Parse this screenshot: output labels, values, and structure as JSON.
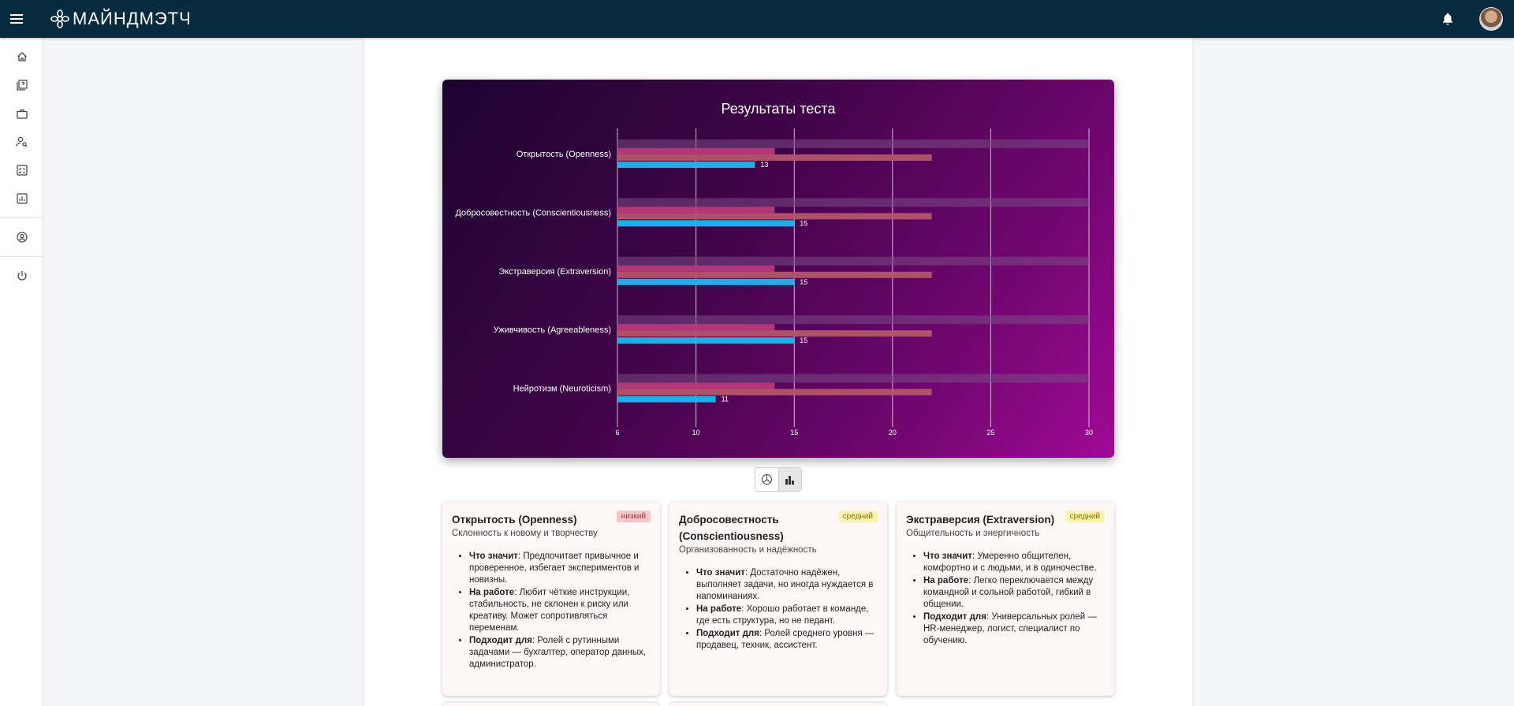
{
  "app": {
    "logo_text": "МАЙНДМЭТЧ"
  },
  "header": {
    "icons": [
      "menu-icon",
      "bell-icon",
      "avatar"
    ]
  },
  "sidebar": {
    "items": [
      {
        "icon": "home-icon"
      },
      {
        "icon": "tests-icon"
      },
      {
        "icon": "briefcase-icon"
      },
      {
        "icon": "user-search-icon"
      },
      {
        "icon": "checklist-icon"
      },
      {
        "icon": "analytics-icon"
      },
      {
        "icon": "account-icon"
      },
      {
        "icon": "power-icon"
      }
    ]
  },
  "chart_data": {
    "type": "bar",
    "orientation": "horizontal",
    "title": "Результаты теста",
    "categories": [
      "Открытость (Openness)",
      "Добросовестность (Conscientiousness)",
      "Экстраверсия (Extraversion)",
      "Уживчивость (Agreeableness)",
      "Нейротизм (Neuroticism)"
    ],
    "series": [
      {
        "values": [
          30,
          30,
          30,
          30,
          30
        ],
        "color": "#7a4a85"
      },
      {
        "values": [
          14,
          14,
          14,
          14,
          14
        ],
        "color": "#b83a7a"
      },
      {
        "values": [
          22,
          22,
          22,
          22,
          22
        ],
        "color": "#b4556a"
      },
      {
        "values": [
          13,
          15,
          15,
          15,
          11
        ],
        "color": "#1eb7f0",
        "labels": [
          "13",
          "15",
          "15",
          "15",
          "11"
        ]
      }
    ],
    "xlim": [
      6,
      30
    ],
    "xticks": [
      "6",
      "10",
      "15",
      "20",
      "25",
      "30"
    ],
    "grid": true
  },
  "view_toggle": {
    "options": [
      "pie-chart-icon",
      "bar-chart-icon"
    ],
    "active": "bar-chart-icon"
  },
  "traits": [
    {
      "title": "Открытость (Openness)",
      "subtitle": "Склонность к новому и творчеству",
      "badge": "низкий",
      "level": "low",
      "meaning_label": "Что значит",
      "meaning": ": Предпочитает привычное и проверенное, избегает экспериментов и новизны.",
      "work_label": "На работе",
      "work": ": Любит чёткие инструкции, стабильность, не склонен к риску или креативу. Может сопротивляться переменам.",
      "fit_label": "Подходит для",
      "fit": ": Ролей с рутинными задачами — бухгалтер, оператор данных, администратор."
    },
    {
      "title": "Добросовестность (Conscientiousness)",
      "subtitle": "Организованность и надёжность",
      "badge": "средний",
      "level": "mid",
      "meaning_label": "Что значит",
      "meaning": ": Достаточно надёжен, выполняет задачи, но иногда нуждается в напоминаниях.",
      "work_label": "На работе",
      "work": ": Хорошо работает в команде, где есть структура, но не педант.",
      "fit_label": "Подходит для",
      "fit": ": Ролей среднего уровня — продавец, техник, ассистент."
    },
    {
      "title": "Экстраверсия (Extraversion)",
      "subtitle": "Общительность и энергичность",
      "badge": "средний",
      "level": "mid",
      "meaning_label": "Что значит",
      "meaning": ": Умеренно общителен, комфортно и с людьми, и в одиночестве.",
      "work_label": "На работе",
      "work": ": Легко переключается между командной и сольной работой, гибкий в общении.",
      "fit_label": "Подходит для",
      "fit": ": Универсальных ролей — HR-менеджер, логист, специалист по обучению."
    }
  ]
}
